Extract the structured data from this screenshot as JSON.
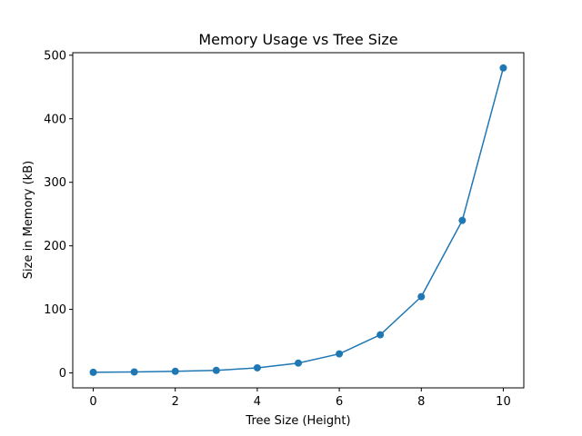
{
  "chart_data": {
    "type": "line",
    "title": "Memory Usage vs Tree Size",
    "xlabel": "Tree Size (Height)",
    "ylabel": "Size in Memory (kB)",
    "x": [
      0,
      1,
      2,
      3,
      4,
      5,
      6,
      7,
      8,
      9,
      10
    ],
    "series": [
      {
        "values": [
          1,
          1.5,
          2.5,
          4,
          8,
          15.5,
          30,
          60,
          120,
          240,
          480
        ],
        "color": "#1f77b4",
        "marker": "circle"
      }
    ],
    "xlim": [
      -0.5,
      10.5
    ],
    "ylim": [
      -23.5,
      504
    ],
    "xticks": [
      0,
      2,
      4,
      6,
      8,
      10
    ],
    "yticks": [
      0,
      100,
      200,
      300,
      400,
      500
    ],
    "grid": false,
    "legend": "none"
  }
}
